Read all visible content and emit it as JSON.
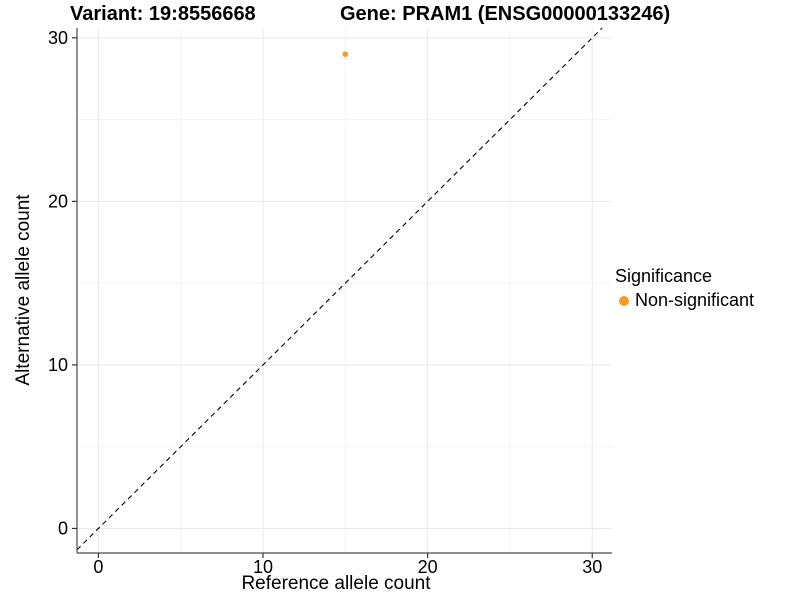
{
  "chart_data": {
    "type": "scatter",
    "titles": {
      "variant": "Variant: 19:8556668",
      "gene": "Gene: PRAM1 (ENSG00000133246)"
    },
    "xlabel": "Reference allele count",
    "ylabel": "Alternative allele count",
    "xlim": [
      -1.3,
      31.2
    ],
    "ylim": [
      -1.5,
      30.6
    ],
    "xticks": [
      0,
      10,
      20,
      30
    ],
    "yticks": [
      0,
      10,
      20,
      30
    ],
    "minor_ticks": [
      5,
      15,
      25
    ],
    "grid": true,
    "points": [
      {
        "x": 15,
        "y": 29,
        "series": "Non-significant",
        "color": "#F8992B"
      }
    ],
    "reference_line": {
      "slope": 1,
      "intercept": 0,
      "style": "dashed",
      "color": "#000000"
    },
    "legend": {
      "title": "Significance",
      "position": "right",
      "entries": [
        {
          "label": "Non-significant",
          "color": "#F8992B"
        }
      ]
    },
    "colors": {
      "background": "#FFFFFF",
      "grid_major": "#E9E9E9",
      "grid_minor": "#F4F4F4",
      "axis_line": "#4A4A4A",
      "tick": "#333333",
      "text": "#000000",
      "point": "#F8992B"
    }
  }
}
